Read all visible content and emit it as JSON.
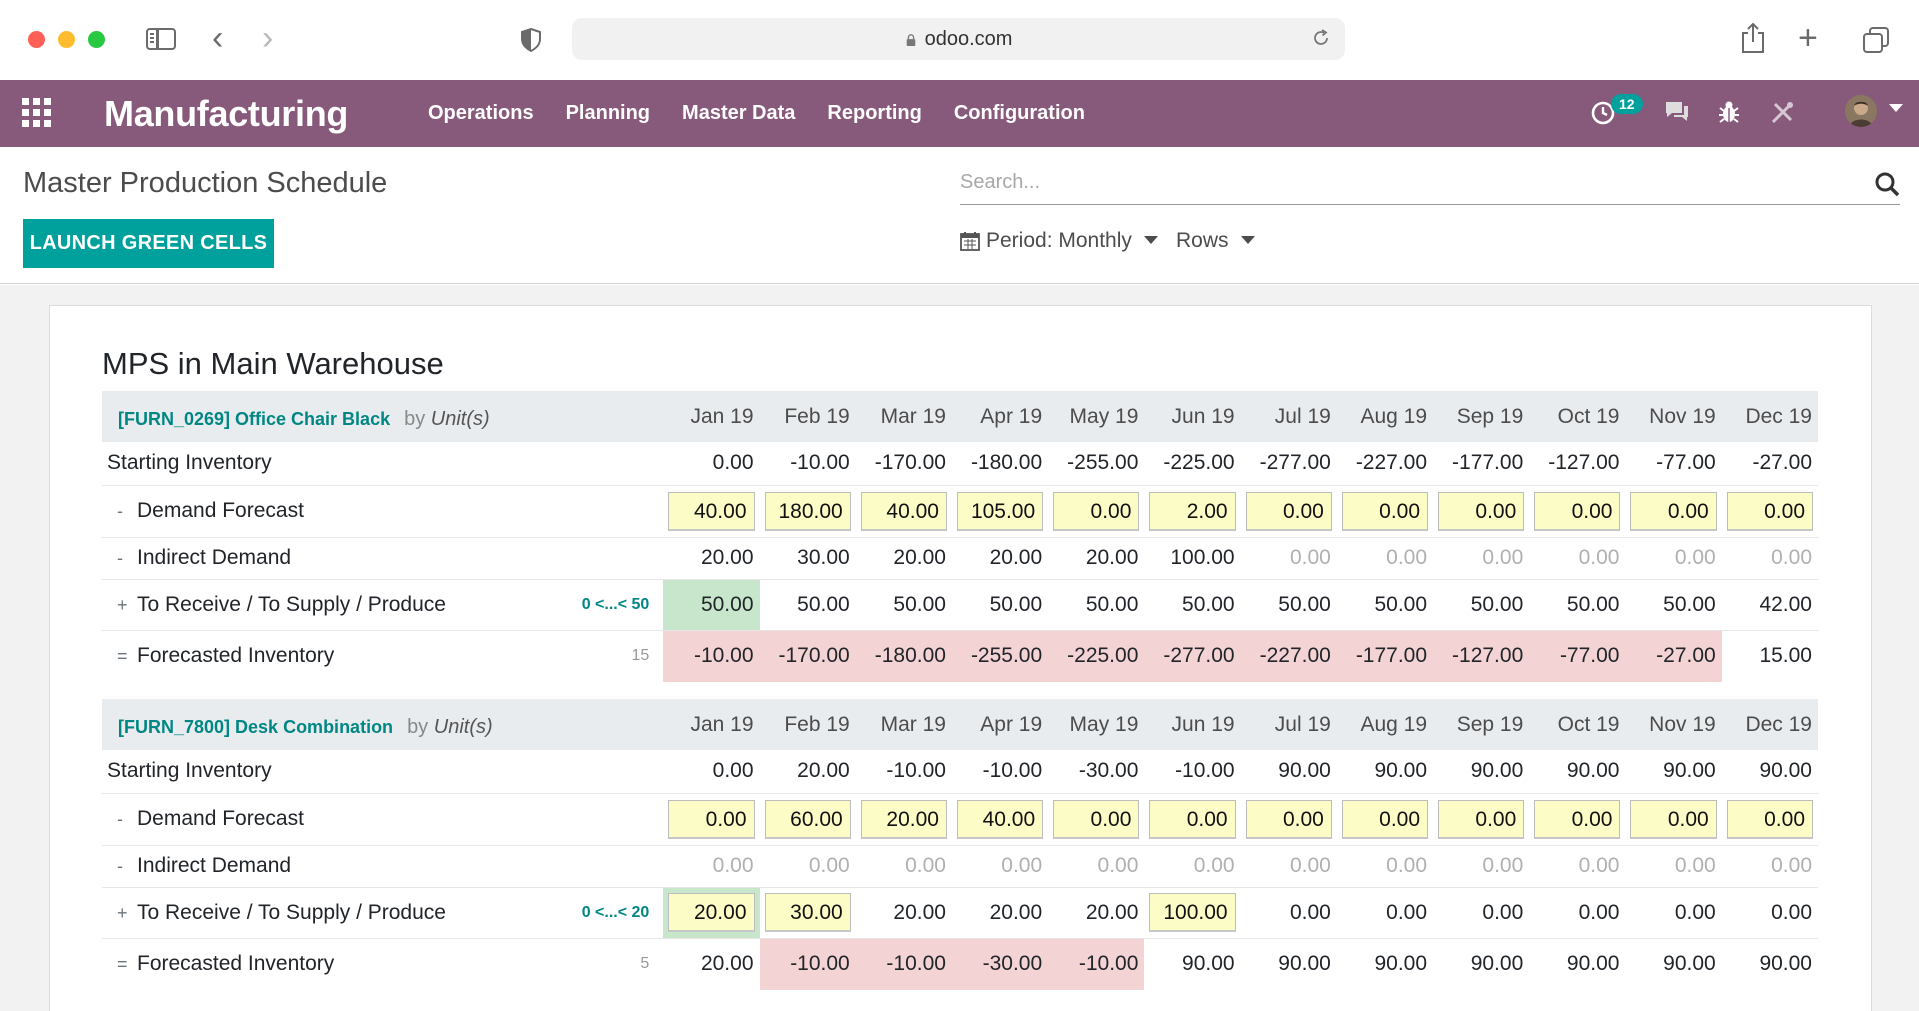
{
  "browser": {
    "url": "odoo.com"
  },
  "navbar": {
    "app_title": "Manufacturing",
    "menu": [
      "Operations",
      "Planning",
      "Master Data",
      "Reporting",
      "Configuration"
    ],
    "activity_count": "12",
    "accent_color": "#875a7b"
  },
  "control_panel": {
    "breadcrumb": "Master Production Schedule",
    "launch_button": "LAUNCH GREEN CELLS",
    "search_placeholder": "Search...",
    "period_label": "Period: Monthly",
    "rows_label": "Rows"
  },
  "mps": {
    "title": "MPS in Main Warehouse",
    "months": [
      "Jan 19",
      "Feb 19",
      "Mar 19",
      "Apr 19",
      "May 19",
      "Jun 19",
      "Jul 19",
      "Aug 19",
      "Sep 19",
      "Oct 19",
      "Nov 19",
      "Dec 19"
    ],
    "row_labels": {
      "starting": "Starting Inventory",
      "demand": "Demand Forecast",
      "indirect": "Indirect Demand",
      "receive": "To Receive / To Supply / Produce",
      "forecasted": "Forecasted Inventory"
    },
    "operators": {
      "demand": "-",
      "indirect": "-",
      "receive": "+",
      "forecasted": "="
    },
    "products": [
      {
        "name": "[FURN_0269] Office Chair Black",
        "by": "by",
        "uom": "Unit(s)",
        "replenish_range": "0 <...< 50",
        "safety_stock": "15",
        "starting": [
          "0.00",
          "-10.00",
          "-170.00",
          "-180.00",
          "-255.00",
          "-225.00",
          "-277.00",
          "-227.00",
          "-177.00",
          "-127.00",
          "-77.00",
          "-27.00"
        ],
        "demand": [
          "40.00",
          "180.00",
          "40.00",
          "105.00",
          "0.00",
          "2.00",
          "0.00",
          "0.00",
          "0.00",
          "0.00",
          "0.00",
          "0.00"
        ],
        "indirect": [
          "20.00",
          "30.00",
          "20.00",
          "20.00",
          "20.00",
          "100.00",
          "0.00",
          "0.00",
          "0.00",
          "0.00",
          "0.00",
          "0.00"
        ],
        "receive": [
          "50.00",
          "50.00",
          "50.00",
          "50.00",
          "50.00",
          "50.00",
          "50.00",
          "50.00",
          "50.00",
          "50.00",
          "50.00",
          "42.00"
        ],
        "receive_green": [
          true,
          false,
          false,
          false,
          false,
          false,
          false,
          false,
          false,
          false,
          false,
          false
        ],
        "receive_boxed": [
          false,
          false,
          false,
          false,
          false,
          false,
          false,
          false,
          false,
          false,
          false,
          false
        ],
        "forecasted": [
          "-10.00",
          "-170.00",
          "-180.00",
          "-255.00",
          "-225.00",
          "-277.00",
          "-227.00",
          "-177.00",
          "-127.00",
          "-77.00",
          "-27.00",
          "15.00"
        ],
        "forecasted_red": [
          true,
          true,
          true,
          true,
          true,
          true,
          true,
          true,
          true,
          true,
          true,
          false
        ]
      },
      {
        "name": "[FURN_7800] Desk Combination",
        "by": "by",
        "uom": "Unit(s)",
        "replenish_range": "0 <...< 20",
        "safety_stock": "5",
        "starting": [
          "0.00",
          "20.00",
          "-10.00",
          "-10.00",
          "-30.00",
          "-10.00",
          "90.00",
          "90.00",
          "90.00",
          "90.00",
          "90.00",
          "90.00"
        ],
        "demand": [
          "0.00",
          "60.00",
          "20.00",
          "40.00",
          "0.00",
          "0.00",
          "0.00",
          "0.00",
          "0.00",
          "0.00",
          "0.00",
          "0.00"
        ],
        "indirect": [
          "0.00",
          "0.00",
          "0.00",
          "0.00",
          "0.00",
          "0.00",
          "0.00",
          "0.00",
          "0.00",
          "0.00",
          "0.00",
          "0.00"
        ],
        "receive": [
          "20.00",
          "30.00",
          "20.00",
          "20.00",
          "20.00",
          "100.00",
          "0.00",
          "0.00",
          "0.00",
          "0.00",
          "0.00",
          "0.00"
        ],
        "receive_green": [
          true,
          false,
          false,
          false,
          false,
          false,
          false,
          false,
          false,
          false,
          false,
          false
        ],
        "receive_boxed": [
          true,
          true,
          false,
          false,
          false,
          true,
          false,
          false,
          false,
          false,
          false,
          false
        ],
        "forecasted": [
          "20.00",
          "-10.00",
          "-10.00",
          "-30.00",
          "-10.00",
          "90.00",
          "90.00",
          "90.00",
          "90.00",
          "90.00",
          "90.00",
          "90.00"
        ],
        "forecasted_red": [
          false,
          true,
          true,
          true,
          true,
          false,
          false,
          false,
          false,
          false,
          false,
          false
        ]
      }
    ]
  },
  "colors": {
    "primary": "#875a7b",
    "teal": "#00a09d",
    "input_yellow": "#fcfcc7",
    "green_cell": "#c7e6cc",
    "red_cell": "#f3d3d3"
  }
}
